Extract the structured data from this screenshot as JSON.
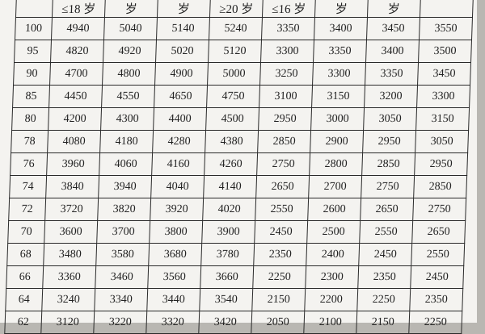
{
  "table": {
    "headers": [
      "",
      "≤18 岁",
      "岁",
      "岁",
      "≥20 岁",
      "≤16 岁",
      "岁",
      "岁",
      ""
    ],
    "rows": [
      [
        "100",
        "4940",
        "5040",
        "5140",
        "5240",
        "3350",
        "3400",
        "3450",
        "3550"
      ],
      [
        "95",
        "4820",
        "4920",
        "5020",
        "5120",
        "3300",
        "3350",
        "3400",
        "3500"
      ],
      [
        "90",
        "4700",
        "4800",
        "4900",
        "5000",
        "3250",
        "3300",
        "3350",
        "3450"
      ],
      [
        "85",
        "4450",
        "4550",
        "4650",
        "4750",
        "3100",
        "3150",
        "3200",
        "3300"
      ],
      [
        "80",
        "4200",
        "4300",
        "4400",
        "4500",
        "2950",
        "3000",
        "3050",
        "3150"
      ],
      [
        "78",
        "4080",
        "4180",
        "4280",
        "4380",
        "2850",
        "2900",
        "2950",
        "3050"
      ],
      [
        "76",
        "3960",
        "4060",
        "4160",
        "4260",
        "2750",
        "2800",
        "2850",
        "2950"
      ],
      [
        "74",
        "3840",
        "3940",
        "4040",
        "4140",
        "2650",
        "2700",
        "2750",
        "2850"
      ],
      [
        "72",
        "3720",
        "3820",
        "3920",
        "4020",
        "2550",
        "2600",
        "2650",
        "2750"
      ],
      [
        "70",
        "3600",
        "3700",
        "3800",
        "3900",
        "2450",
        "2500",
        "2550",
        "2650"
      ],
      [
        "68",
        "3480",
        "3580",
        "3680",
        "3780",
        "2350",
        "2400",
        "2450",
        "2550"
      ],
      [
        "66",
        "3360",
        "3460",
        "3560",
        "3660",
        "2250",
        "2300",
        "2350",
        "2450"
      ],
      [
        "64",
        "3240",
        "3340",
        "3440",
        "3540",
        "2150",
        "2200",
        "2250",
        "2350"
      ],
      [
        "62",
        "3120",
        "3220",
        "3320",
        "3420",
        "2050",
        "2100",
        "2150",
        "2250"
      ]
    ]
  }
}
